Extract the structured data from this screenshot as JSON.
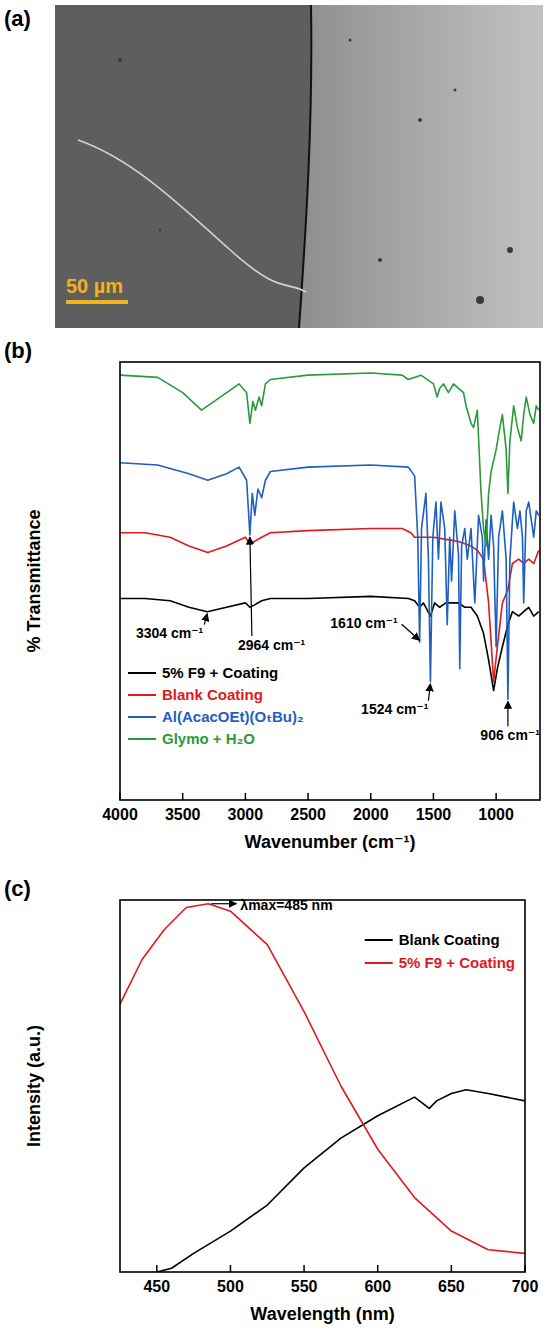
{
  "image": {
    "label": "(a)",
    "scale_bar": "50 µm"
  },
  "chart_data": [
    {
      "label": "(b)",
      "type": "line",
      "xlabel": "Wavenumber (cm⁻¹)",
      "ylabel": "% Transmittance",
      "xlim": [
        4000,
        650
      ],
      "xticks": [
        4000,
        3500,
        3000,
        2500,
        2000,
        1500,
        1000
      ],
      "ylim": [
        0,
        100
      ],
      "tick_labels": "x",
      "grid": false,
      "legend": "lower left",
      "series": [
        {
          "name": "5% F9 + Coating",
          "color": "#000000",
          "x": [
            4000,
            3800,
            3600,
            3450,
            3304,
            3150,
            3000,
            2964,
            2930,
            2870,
            2800,
            2500,
            2000,
            1700,
            1650,
            1610,
            1580,
            1524,
            1490,
            1450,
            1400,
            1300,
            1250,
            1200,
            1150,
            1100,
            1060,
            1020,
            990,
            950,
            906,
            870,
            820,
            780,
            740,
            700,
            660
          ],
          "values": [
            46,
            46,
            45.5,
            44,
            43,
            44,
            45,
            44,
            44.5,
            45.5,
            46,
            46,
            46.5,
            46,
            45.5,
            44,
            45,
            42,
            45,
            44,
            45,
            45,
            44,
            44,
            42,
            38,
            32,
            25,
            30,
            35,
            40,
            43,
            42,
            43,
            44,
            42,
            43
          ]
        },
        {
          "name": "Blank Coating",
          "color": "#e0191b",
          "x": [
            4000,
            3800,
            3600,
            3450,
            3300,
            3150,
            3000,
            2964,
            2930,
            2870,
            2800,
            2500,
            2000,
            1750,
            1680,
            1650,
            1500,
            1400,
            1300,
            1200,
            1150,
            1100,
            1060,
            1020,
            990,
            950,
            906,
            870,
            820,
            780,
            740,
            700,
            660
          ],
          "values": [
            61,
            61,
            60,
            58,
            56.5,
            58,
            60,
            58.5,
            59,
            60,
            61,
            61.5,
            62,
            62,
            61,
            60,
            60,
            59.5,
            59,
            58,
            57,
            55,
            45,
            27,
            35,
            45,
            48,
            54,
            55,
            54,
            55,
            54,
            57
          ]
        },
        {
          "name": "Al(AcacOEt)(OₜBu)₂",
          "color": "#1f5fbf",
          "x": [
            4000,
            3700,
            3450,
            3300,
            3150,
            3050,
            2990,
            2964,
            2945,
            2925,
            2900,
            2870,
            2840,
            2800,
            2500,
            2000,
            1700,
            1650,
            1625,
            1610,
            1595,
            1560,
            1540,
            1524,
            1505,
            1480,
            1460,
            1440,
            1410,
            1390,
            1370,
            1355,
            1330,
            1300,
            1290,
            1275,
            1250,
            1230,
            1200,
            1170,
            1140,
            1110,
            1100,
            1080,
            1060,
            1040,
            1020,
            1000,
            980,
            950,
            920,
            906,
            890,
            860,
            830,
            810,
            790,
            780,
            760,
            740,
            700,
            680,
            660
          ],
          "values": [
            77,
            76.5,
            74.5,
            73,
            74.5,
            76,
            73,
            60.5,
            70,
            65,
            71,
            69,
            73,
            75,
            76,
            76.5,
            76,
            74,
            60,
            36,
            62,
            70,
            55,
            27,
            60,
            68,
            55,
            68,
            62,
            40,
            60,
            50,
            66,
            56,
            30,
            58,
            62,
            55,
            62,
            45,
            65,
            60,
            50,
            64,
            55,
            65,
            58,
            35,
            60,
            66,
            55,
            23,
            55,
            68,
            62,
            66,
            60,
            45,
            66,
            68,
            60,
            66,
            65
          ]
        },
        {
          "name": "Glymo + H₂O",
          "color": "#2a9a3a",
          "x": [
            4000,
            3700,
            3500,
            3350,
            3200,
            3050,
            2990,
            2964,
            2940,
            2920,
            2890,
            2870,
            2840,
            2800,
            2500,
            2000,
            1750,
            1700,
            1600,
            1500,
            1470,
            1450,
            1420,
            1380,
            1340,
            1300,
            1260,
            1240,
            1200,
            1180,
            1150,
            1120,
            1100,
            1080,
            1060,
            1040,
            1000,
            970,
            950,
            920,
            906,
            890,
            860,
            830,
            800,
            780,
            760,
            730,
            700,
            680,
            660
          ],
          "values": [
            97,
            96.5,
            93,
            89,
            92,
            95,
            93,
            86,
            91,
            89,
            92,
            90,
            95,
            96,
            97,
            97.5,
            97,
            96,
            97,
            95,
            92,
            94,
            95,
            93,
            95,
            94,
            93,
            90,
            86,
            85,
            89,
            70,
            62,
            58,
            70,
            75,
            80,
            85,
            88,
            80,
            70,
            82,
            90,
            85,
            82,
            88,
            92,
            88,
            86,
            90,
            89
          ]
        }
      ],
      "annotations": [
        {
          "text": "3304 cm⁻¹",
          "x": 3304,
          "y": 43
        },
        {
          "text": "2964 cm⁻¹",
          "x": 2964,
          "y": 60.5
        },
        {
          "text": "1610 cm⁻¹",
          "x": 1610,
          "y": 36
        },
        {
          "text": "1524 cm⁻¹",
          "x": 1524,
          "y": 27
        },
        {
          "text": "906 cm⁻¹",
          "x": 906,
          "y": 23
        }
      ]
    },
    {
      "label": "(c)",
      "type": "line",
      "xlabel": "Wavelength (nm)",
      "ylabel": "Intensity (a.u.)",
      "xlim": [
        425,
        700
      ],
      "xticks": [
        450,
        500,
        550,
        600,
        650,
        700
      ],
      "ylim": [
        0,
        100
      ],
      "tick_labels": "x",
      "grid": false,
      "legend": "upper right",
      "series": [
        {
          "name": "Blank Coating",
          "color": "#000000",
          "x": [
            450,
            460,
            475,
            500,
            525,
            550,
            575,
            600,
            625,
            635,
            640,
            650,
            660,
            675,
            700
          ],
          "values": [
            0,
            1,
            5,
            11,
            18,
            28,
            36,
            42,
            47,
            44,
            46,
            48,
            49,
            48,
            46
          ]
        },
        {
          "name": "5% F9 + Coating",
          "color": "#e0191b",
          "x": [
            425,
            440,
            455,
            470,
            485,
            500,
            525,
            550,
            575,
            600,
            625,
            650,
            675,
            700
          ],
          "values": [
            72,
            84,
            92,
            98,
            99,
            97,
            88,
            70,
            50,
            33,
            20,
            11,
            6,
            5
          ]
        }
      ],
      "annotations": [
        {
          "text": "λmax=485 nm",
          "x": 485,
          "y": 99
        }
      ]
    }
  ]
}
